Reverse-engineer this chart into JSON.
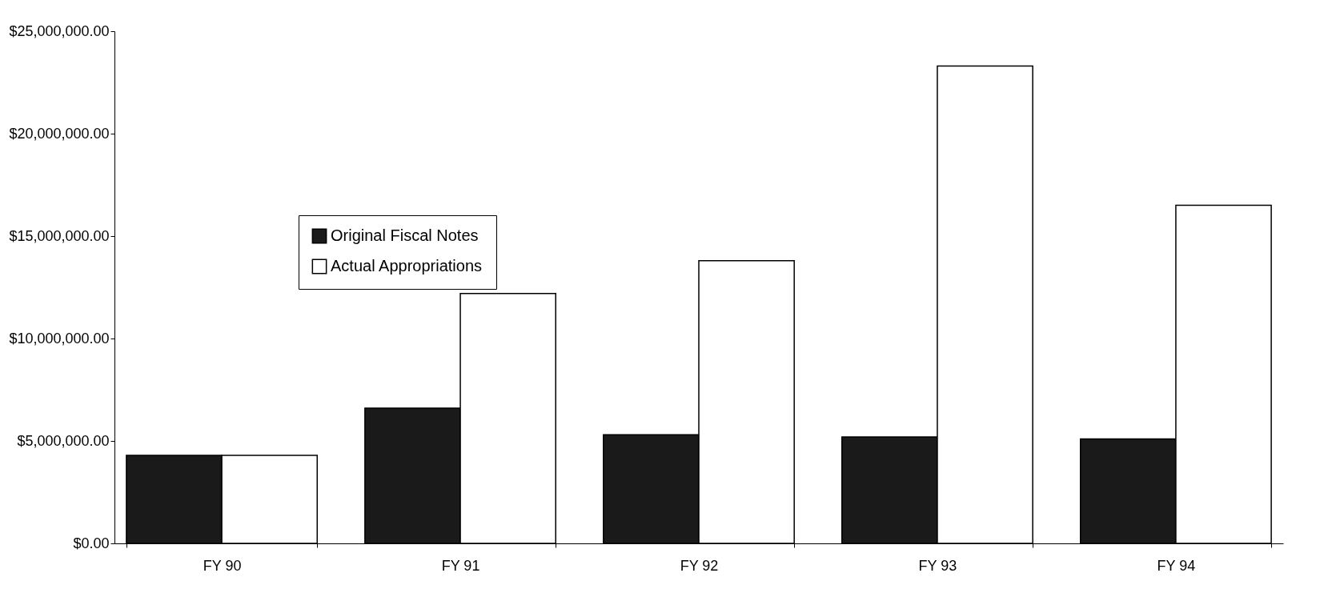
{
  "chart_data": {
    "type": "bar",
    "categories": [
      "FY 90",
      "FY 91",
      "FY 92",
      "FY 93",
      "FY 94"
    ],
    "series": [
      {
        "name": "Original Fiscal Notes",
        "color": "#1a1a1a",
        "values": [
          4300000,
          6600000,
          5300000,
          5200000,
          5100000
        ]
      },
      {
        "name": "Actual Appropriations",
        "color": "#ffffff",
        "values": [
          4300000,
          12200000,
          13800000,
          23300000,
          16500000
        ]
      }
    ],
    "ylim": [
      0,
      25000000
    ],
    "yticks": [
      {
        "value": 0,
        "label": "$0.00"
      },
      {
        "value": 5000000,
        "label": "$5,000,000.00"
      },
      {
        "value": 10000000,
        "label": "$10,000,000.00"
      },
      {
        "value": 15000000,
        "label": "$15,000,000.00"
      },
      {
        "value": 20000000,
        "label": "$20,000,000.00"
      },
      {
        "value": 25000000,
        "label": "$25,000,000.00"
      }
    ],
    "grid": false,
    "legend": "top left"
  }
}
